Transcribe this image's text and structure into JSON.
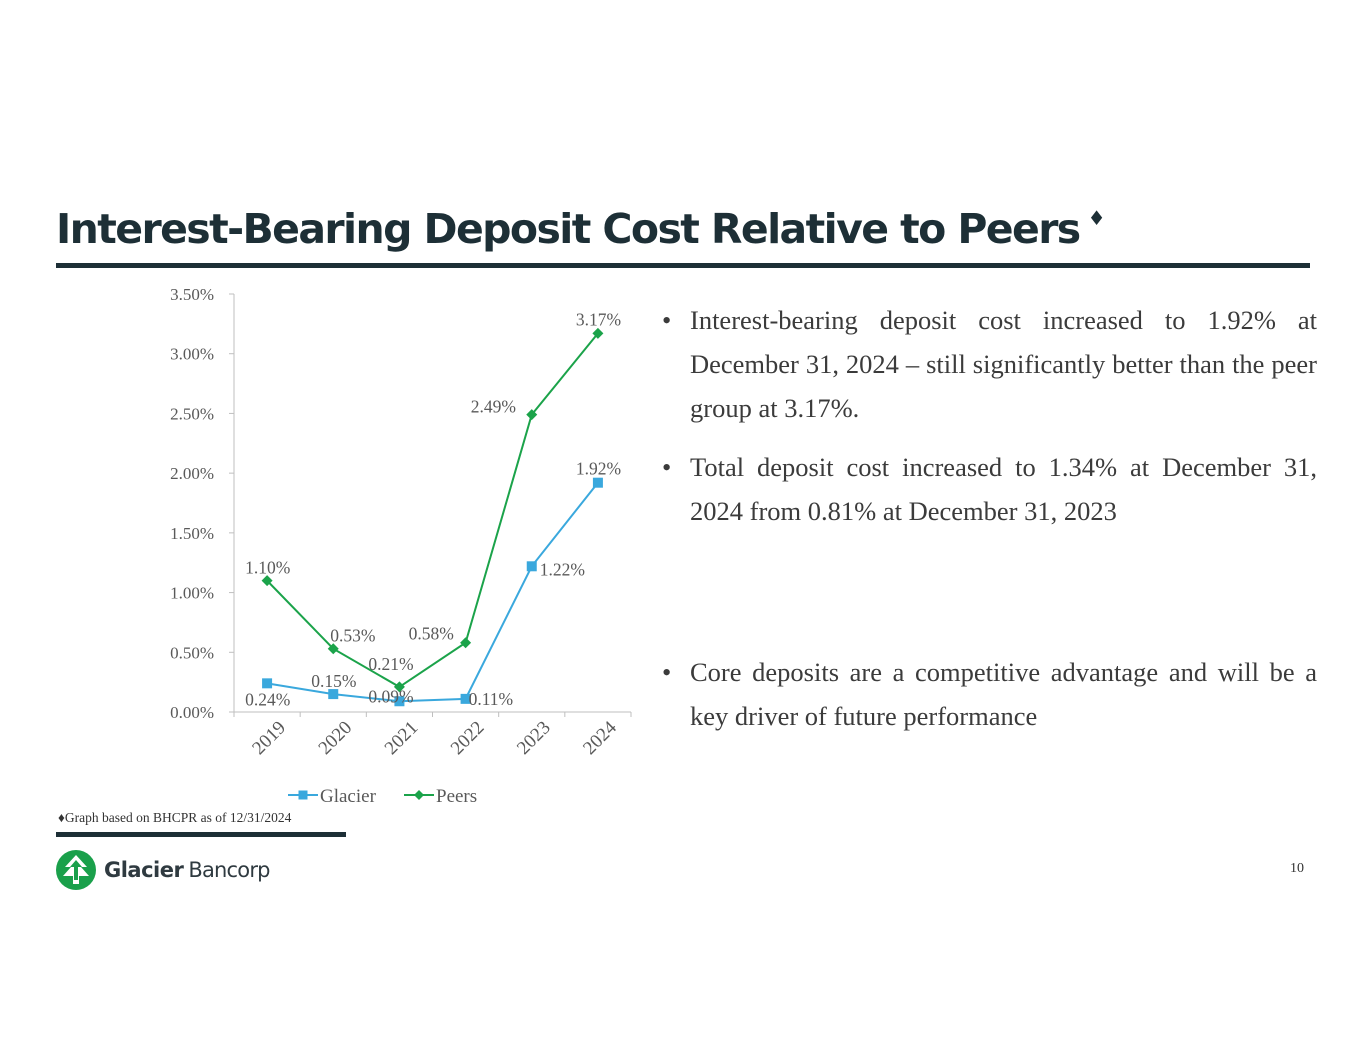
{
  "slide": {
    "title": "Interest-Bearing Deposit Cost Relative to Peers",
    "title_mark": "♦",
    "footnote": "♦Graph based on BHCPR as of 12/31/2024",
    "page_number": "10",
    "logo": {
      "word1": "Glacier",
      "word2": "Bancorp",
      "icon": "tree-logo-icon",
      "color": "#1aa04b"
    },
    "bullets": [
      "Interest-bearing deposit cost increased to 1.92% at December 31, 2024 – still significantly better than the peer group at 3.17%.",
      "Total deposit cost increased to 1.34% at December 31, 2024 from 0.81% at December 31, 2023",
      "Core deposits are a competitive advantage and will be a key driver of future performance"
    ],
    "bullet_symbol": "•"
  },
  "chart_data": {
    "type": "line",
    "categories": [
      "2019",
      "2020",
      "2021",
      "2022",
      "2023",
      "2024"
    ],
    "ylim": [
      0,
      3.5
    ],
    "yticks": [
      "0.00%",
      "0.50%",
      "1.00%",
      "1.50%",
      "2.00%",
      "2.50%",
      "3.00%",
      "3.50%"
    ],
    "legend_position": "bottom",
    "grid": false,
    "series": [
      {
        "name": "Glacier",
        "values": [
          0.24,
          0.15,
          0.09,
          0.11,
          1.22,
          1.92
        ],
        "labels": [
          "0.24%",
          "0.15%",
          "0.09%",
          "0.11%",
          "1.22%",
          "1.92%"
        ],
        "color": "#3aa8dd",
        "marker": "square"
      },
      {
        "name": "Peers",
        "values": [
          1.1,
          0.53,
          0.21,
          0.58,
          2.49,
          3.17
        ],
        "labels": [
          "1.10%",
          "0.53%",
          "0.21%",
          "0.58%",
          "2.49%",
          "3.17%"
        ],
        "color": "#1ba34a",
        "marker": "diamond"
      }
    ]
  }
}
